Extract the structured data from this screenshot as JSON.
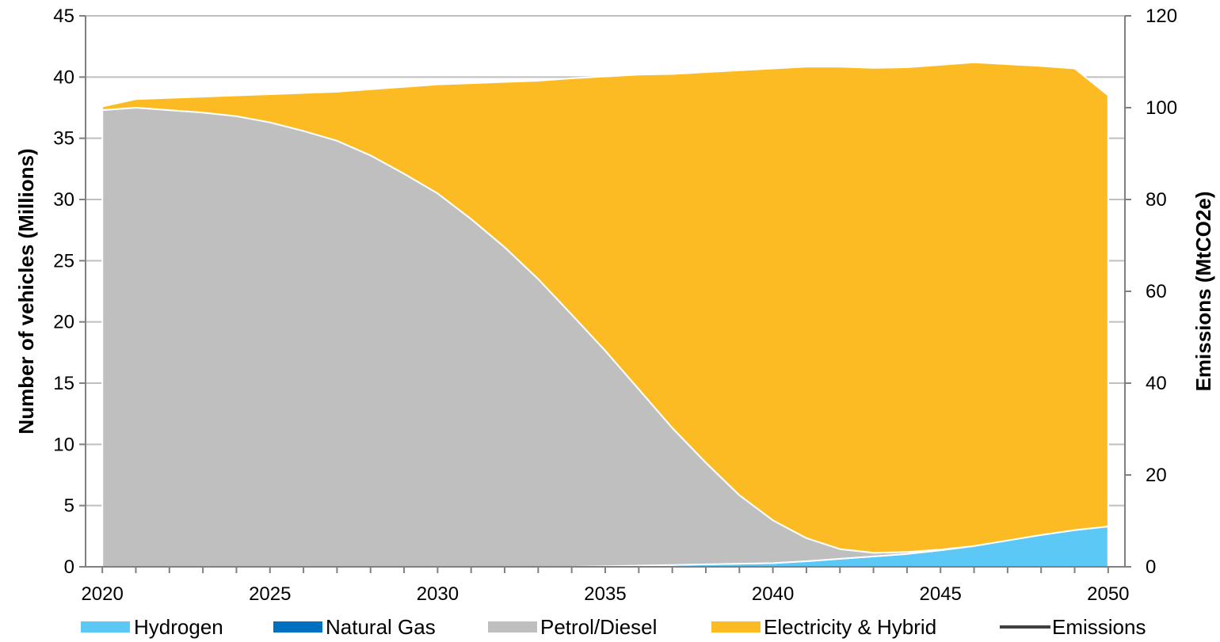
{
  "chart_data": {
    "type": "area",
    "x": [
      2020,
      2021,
      2022,
      2023,
      2024,
      2025,
      2026,
      2027,
      2028,
      2029,
      2030,
      2031,
      2032,
      2033,
      2034,
      2035,
      2036,
      2037,
      2038,
      2039,
      2040,
      2041,
      2042,
      2043,
      2044,
      2045,
      2046,
      2047,
      2048,
      2049,
      2050
    ],
    "series": [
      {
        "name": "Hydrogen",
        "color": "#5bc8f5",
        "values": [
          0,
          0,
          0,
          0,
          0,
          0,
          0,
          0,
          0,
          0,
          0,
          0,
          0,
          0,
          0,
          0.05,
          0.1,
          0.15,
          0.2,
          0.25,
          0.3,
          0.45,
          0.65,
          0.85,
          1.05,
          1.35,
          1.7,
          2.15,
          2.6,
          3.0,
          3.3
        ]
      },
      {
        "name": "Natural Gas",
        "color": "#0070c0",
        "values": [
          0,
          0,
          0,
          0,
          0,
          0,
          0,
          0,
          0,
          0,
          0,
          0,
          0,
          0,
          0,
          0,
          0,
          0,
          0,
          0,
          0,
          0,
          0,
          0,
          0,
          0,
          0,
          0,
          0,
          0,
          0
        ]
      },
      {
        "name": "Petrol/Diesel",
        "color": "#bfbfbf",
        "values": [
          37.3,
          37.5,
          37.3,
          37.1,
          36.8,
          36.3,
          35.6,
          34.8,
          33.6,
          32.1,
          30.5,
          28.4,
          26.1,
          23.5,
          20.6,
          17.6,
          14.4,
          11.2,
          8.3,
          5.6,
          3.5,
          1.9,
          0.8,
          0.3,
          0.15,
          0.05,
          0,
          0,
          0,
          0,
          0
        ]
      },
      {
        "name": "Electricity & Hybrid",
        "color": "#fdbb23",
        "values": [
          0.3,
          0.7,
          1.0,
          1.3,
          1.7,
          2.3,
          3.1,
          4.0,
          5.4,
          7.1,
          8.9,
          11.1,
          13.5,
          16.2,
          19.3,
          22.4,
          25.7,
          28.9,
          31.9,
          34.7,
          36.9,
          38.5,
          39.4,
          39.6,
          39.6,
          39.6,
          39.5,
          38.9,
          38.3,
          37.7,
          35.2
        ]
      }
    ],
    "line_series": {
      "name": "Emissions",
      "axis": "right",
      "color": "#404040",
      "values": []
    },
    "xlabel": "",
    "ylabel": "Number of vehicles (Millions)",
    "y2label": "Emissions (MtCO2e)",
    "ylim": [
      0,
      45
    ],
    "y2lim": [
      0,
      120
    ],
    "yticks": [
      "0",
      "5",
      "10",
      "15",
      "20",
      "25",
      "30",
      "35",
      "40",
      "45"
    ],
    "y2ticks": [
      "0",
      "20",
      "40",
      "60",
      "80",
      "100",
      "120"
    ],
    "xticks": [
      "2020",
      "2025",
      "2030",
      "2035",
      "2040",
      "2045",
      "2050"
    ],
    "grid": true,
    "legend_position": "bottom",
    "legend": [
      {
        "label": "Hydrogen",
        "color": "#5bc8f5",
        "kind": "patch"
      },
      {
        "label": "Natural Gas",
        "color": "#0070c0",
        "kind": "patch"
      },
      {
        "label": "Petrol/Diesel",
        "color": "#bfbfbf",
        "kind": "patch"
      },
      {
        "label": "Electricity & Hybrid",
        "color": "#fdbb23",
        "kind": "patch"
      },
      {
        "label": "Emissions",
        "color": "#404040",
        "kind": "line"
      }
    ]
  }
}
